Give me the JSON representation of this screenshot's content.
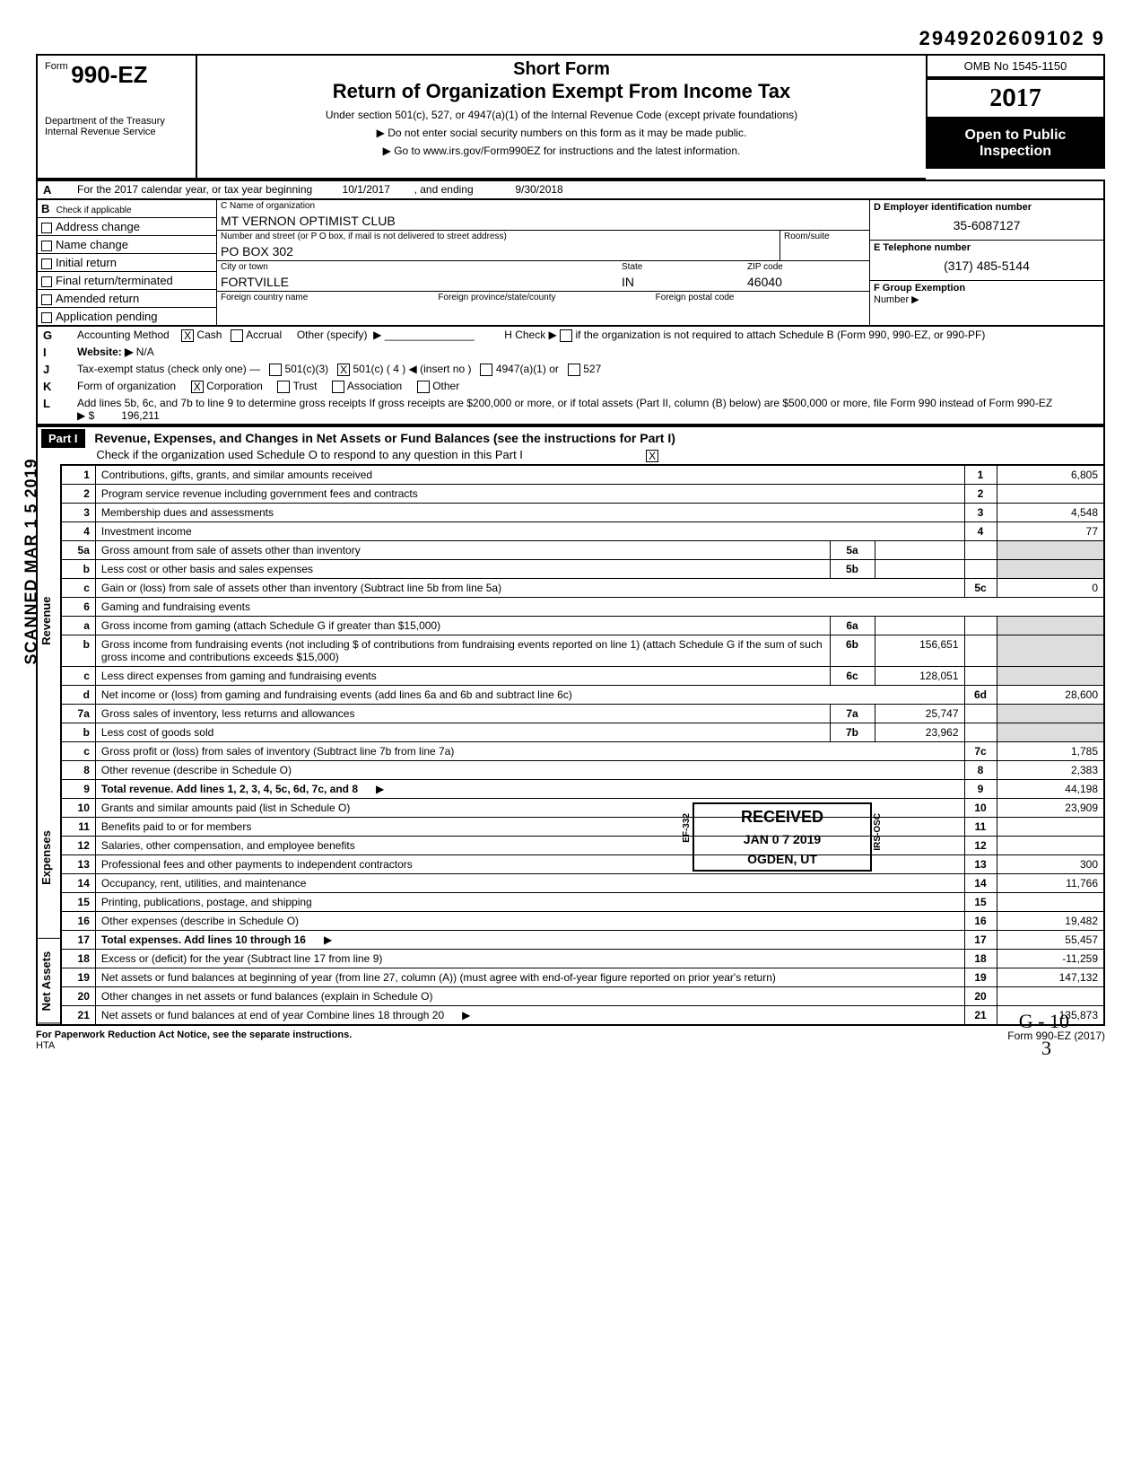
{
  "dln": "2949202609102 9",
  "omb": "OMB No 1545-1150",
  "form_number": "990-EZ",
  "form_prefix": "Form",
  "year": "2017",
  "short_form": "Short Form",
  "main_title": "Return of Organization Exempt From Income Tax",
  "section_text": "Under section 501(c), 527, or 4947(a)(1) of the Internal Revenue Code (except private foundations)",
  "ssn_text": "Do not enter social security numbers on this form as it may be made public.",
  "goto_text": "Go to www.irs.gov/Form990EZ for instructions and the latest information.",
  "open_public_1": "Open to Public",
  "open_public_2": "Inspection",
  "dept_1": "Department of the Treasury",
  "dept_2": "Internal Revenue Service",
  "period_label": "For the 2017 calendar year, or tax year beginning",
  "period_begin": "10/1/2017",
  "period_and": ", and ending",
  "period_end": "9/30/2018",
  "check_label": "Check if applicable",
  "checks": [
    "Address change",
    "Name change",
    "Initial return",
    "Final return/terminated",
    "Amended return",
    "Application pending"
  ],
  "c_name_label": "C  Name of organization",
  "org_name": "MT VERNON OPTIMIST CLUB",
  "street_label": "Number and street (or P O  box, if mail is not delivered to street address)",
  "room_label": "Room/suite",
  "street": "PO BOX 302",
  "city_label": "City or town",
  "state_label": "State",
  "zip_label": "ZIP code",
  "city": "FORTVILLE",
  "state": "IN",
  "zip": "46040",
  "foreign_country_label": "Foreign country name",
  "foreign_province_label": "Foreign province/state/county",
  "foreign_postal_label": "Foreign postal code",
  "d_ein_label": "D  Employer identification number",
  "ein": "35-6087127",
  "e_phone_label": "E  Telephone number",
  "phone": "(317) 485-5144",
  "f_group_label": "F  Group Exemption",
  "f_number_label": "Number ▶",
  "g_label": "Accounting Method",
  "g_cash": "Cash",
  "g_accrual": "Accrual",
  "g_other": "Other (specify)",
  "h_label": "H  Check ▶",
  "h_text": "if the organization is not required to attach Schedule B (Form 990, 990-EZ, or 990-PF)",
  "i_label": "Website: ▶",
  "website": "N/A",
  "j_label": "Tax-exempt status (check only one) —",
  "j_501c3": "501(c)(3)",
  "j_501c": "501(c) (",
  "j_insert_num": "4",
  "j_insert": ") ◀ (insert no )",
  "j_4947": "4947(a)(1) or",
  "j_527": "527",
  "k_label": "Form of organization",
  "k_corp": "Corporation",
  "k_trust": "Trust",
  "k_assoc": "Association",
  "k_other": "Other",
  "l_text": "Add lines 5b, 6c, and 7b to line 9 to determine gross receipts  If gross receipts are $200,000 or more, or if total assets (Part II, column (B) below) are $500,000 or more, file Form 990 instead of Form 990-EZ",
  "l_arrow": "▶ $",
  "l_val": "196,211",
  "part1_label": "Part I",
  "part1_title": "Revenue, Expenses, and Changes in Net Assets or Fund Balances (see the instructions for Part I)",
  "part1_check": "Check if the organization used Schedule O to respond to any question in this Part I",
  "side_revenue": "Revenue",
  "side_expenses": "Expenses",
  "side_netassets": "Net Assets",
  "scanned": "SCANNED MAR 1 5 2019",
  "rows": [
    {
      "n": "1",
      "desc": "Contributions, gifts, grants, and similar amounts received",
      "box": "1",
      "val": "6,805"
    },
    {
      "n": "2",
      "desc": "Program service revenue including government fees and contracts",
      "box": "2",
      "val": ""
    },
    {
      "n": "3",
      "desc": "Membership dues and assessments",
      "box": "3",
      "val": "4,548"
    },
    {
      "n": "4",
      "desc": "Investment income",
      "box": "4",
      "val": "77"
    },
    {
      "n": "5a",
      "desc": "Gross amount from sale of assets other than inventory",
      "mid": "5a",
      "midval": ""
    },
    {
      "n": "b",
      "desc": "Less  cost or other basis and sales expenses",
      "mid": "5b",
      "midval": ""
    },
    {
      "n": "c",
      "desc": "Gain or (loss) from sale of assets other than inventory (Subtract line 5b from line 5a)",
      "box": "5c",
      "val": "0"
    },
    {
      "n": "6",
      "desc": "Gaming and fundraising events"
    },
    {
      "n": "a",
      "desc": "Gross income from gaming (attach Schedule G if greater than $15,000)",
      "mid": "6a",
      "midval": ""
    },
    {
      "n": "b",
      "desc": "Gross income from fundraising events (not including     $              of contributions from fundraising events reported on line 1) (attach Schedule G if the sum of such gross income and contributions exceeds $15,000)",
      "mid": "6b",
      "midval": "156,651"
    },
    {
      "n": "c",
      "desc": "Less  direct expenses from gaming and fundraising events",
      "mid": "6c",
      "midval": "128,051"
    },
    {
      "n": "d",
      "desc": "Net income or (loss) from gaming and fundraising events (add lines 6a and 6b and subtract line 6c)",
      "box": "6d",
      "val": "28,600"
    },
    {
      "n": "7a",
      "desc": "Gross sales of inventory, less returns and allowances",
      "mid": "7a",
      "midval": "25,747"
    },
    {
      "n": "b",
      "desc": "Less  cost of goods sold",
      "mid": "7b",
      "midval": "23,962"
    },
    {
      "n": "c",
      "desc": "Gross profit or (loss) from sales of inventory (Subtract line 7b from line 7a)",
      "box": "7c",
      "val": "1,785"
    },
    {
      "n": "8",
      "desc": "Other revenue (describe in Schedule O)",
      "box": "8",
      "val": "2,383"
    },
    {
      "n": "9",
      "desc": "Total revenue. Add lines 1, 2, 3, 4, 5c, 6d, 7c, and 8",
      "arrow": "▶",
      "box": "9",
      "val": "44,198",
      "bold": true
    },
    {
      "n": "10",
      "desc": "Grants and similar amounts paid (list in Schedule O)",
      "box": "10",
      "val": "23,909"
    },
    {
      "n": "11",
      "desc": "Benefits paid to or for members",
      "box": "11",
      "val": ""
    },
    {
      "n": "12",
      "desc": "Salaries, other compensation, and employee benefits",
      "box": "12",
      "val": ""
    },
    {
      "n": "13",
      "desc": "Professional fees and other payments to independent contractors",
      "box": "13",
      "val": "300"
    },
    {
      "n": "14",
      "desc": "Occupancy, rent, utilities, and maintenance",
      "box": "14",
      "val": "11,766"
    },
    {
      "n": "15",
      "desc": "Printing, publications, postage, and shipping",
      "box": "15",
      "val": ""
    },
    {
      "n": "16",
      "desc": "Other expenses (describe in Schedule O)",
      "box": "16",
      "val": "19,482"
    },
    {
      "n": "17",
      "desc": "Total expenses. Add lines 10 through 16",
      "arrow": "▶",
      "box": "17",
      "val": "55,457",
      "bold": true
    },
    {
      "n": "18",
      "desc": "Excess or (deficit) for the year (Subtract line 17 from line 9)",
      "box": "18",
      "val": "-11,259"
    },
    {
      "n": "19",
      "desc": "Net assets or fund balances at beginning of year (from line 27, column (A)) (must agree with end-of-year figure reported on prior year's return)",
      "box": "19",
      "val": "147,132"
    },
    {
      "n": "20",
      "desc": "Other changes in net assets or fund balances (explain in Schedule O)",
      "box": "20",
      "val": ""
    },
    {
      "n": "21",
      "desc": "Net assets or fund balances at end of year  Combine lines 18 through 20",
      "arrow": "▶",
      "box": "21",
      "val": "135,873"
    }
  ],
  "received_stamp": "RECEIVED",
  "received_date": "JAN 0 7 2019",
  "received_loc": "OGDEN, UT",
  "stamp_side_left": "EF-332",
  "stamp_side_right": "IRS-OSC",
  "footer_left": "For Paperwork Reduction Act Notice, see the separate instructions.",
  "footer_hta": "HTA",
  "footer_right": "Form 990-EZ (2017)",
  "handwrite_1": "G - 10",
  "handwrite_2": "3"
}
